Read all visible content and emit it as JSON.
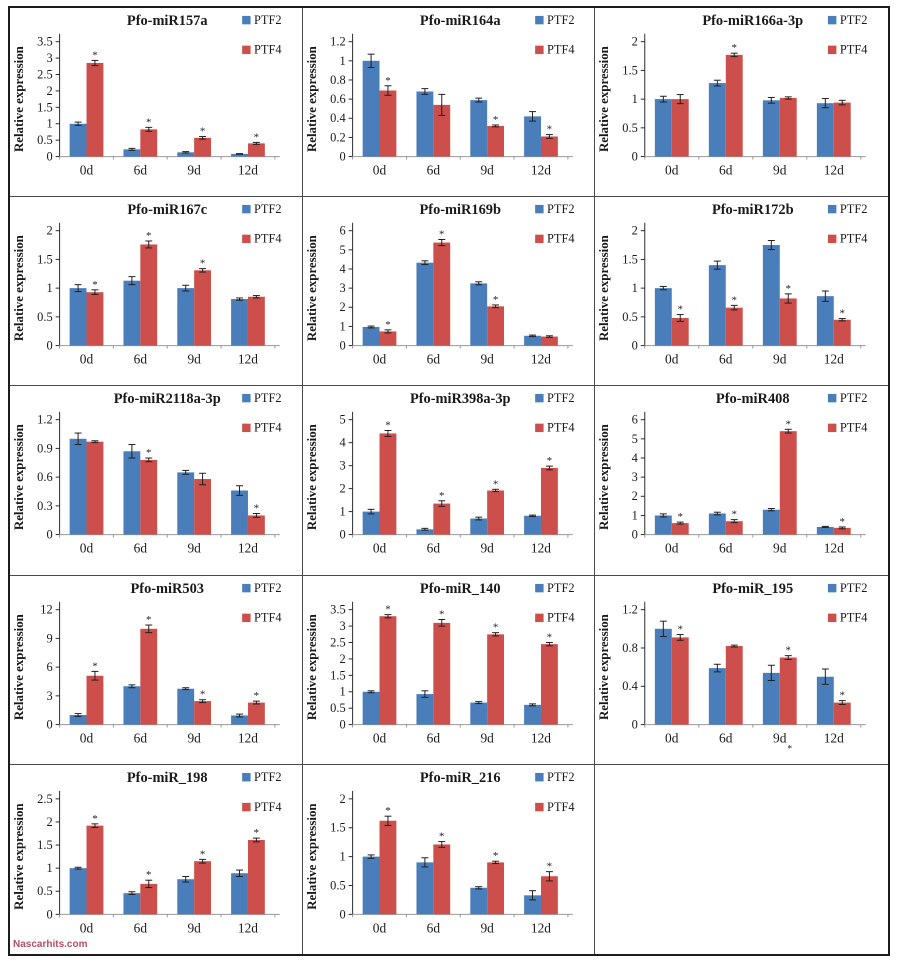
{
  "page": {
    "watermark": "Nascarhits.com"
  },
  "colors": {
    "ptf2": "#4a7ebb",
    "ptf4": "#cc4f4b",
    "axis": "#2b2b2b",
    "baseline": "#999999",
    "error": "#1f1f1f",
    "text": "#1a1a1a"
  },
  "legend": {
    "ptf2_label": "PTF2",
    "ptf4_label": "PTF4",
    "position": "top-right"
  },
  "ylabel": "Relative expression",
  "categories": [
    "0d",
    "6d",
    "9d",
    "12d"
  ],
  "chart_data": [
    {
      "type": "bar",
      "title": "Pfo-miR157a",
      "xlabel": "",
      "ylabel": "Relative expression",
      "ylim": [
        0,
        3.5
      ],
      "ytick_step": 0.5,
      "grid": false,
      "categories": [
        "0d",
        "6d",
        "9d",
        "12d"
      ],
      "series": [
        {
          "name": "PTF2",
          "values": [
            1.0,
            0.22,
            0.13,
            0.08
          ],
          "errors": [
            0.05,
            0.03,
            0.02,
            0.01
          ],
          "asterisks": [
            false,
            false,
            false,
            false
          ]
        },
        {
          "name": "PTF4",
          "values": [
            2.85,
            0.83,
            0.57,
            0.4
          ],
          "errors": [
            0.08,
            0.06,
            0.04,
            0.03
          ],
          "asterisks": [
            true,
            true,
            true,
            true
          ]
        }
      ]
    },
    {
      "type": "bar",
      "title": "Pfo-miR164a",
      "xlabel": "",
      "ylabel": "Relative expression",
      "ylim": [
        0,
        1.2
      ],
      "ytick_step": 0.2,
      "grid": false,
      "categories": [
        "0d",
        "6d",
        "9d",
        "12d"
      ],
      "series": [
        {
          "name": "PTF2",
          "values": [
            1.0,
            0.68,
            0.59,
            0.42
          ],
          "errors": [
            0.07,
            0.03,
            0.02,
            0.05
          ],
          "asterisks": [
            false,
            false,
            false,
            false
          ]
        },
        {
          "name": "PTF4",
          "values": [
            0.69,
            0.54,
            0.32,
            0.21
          ],
          "errors": [
            0.05,
            0.11,
            0.01,
            0.02
          ],
          "asterisks": [
            true,
            false,
            true,
            true
          ]
        }
      ]
    },
    {
      "type": "bar",
      "title": "Pfo-miR166a-3p",
      "xlabel": "",
      "ylabel": "Relative expression",
      "ylim": [
        0,
        2
      ],
      "ytick_step": 0.5,
      "grid": false,
      "categories": [
        "0d",
        "6d",
        "9d",
        "12d"
      ],
      "series": [
        {
          "name": "PTF2",
          "values": [
            1.0,
            1.28,
            0.98,
            0.93
          ],
          "errors": [
            0.05,
            0.05,
            0.05,
            0.08
          ],
          "asterisks": [
            false,
            false,
            false,
            false
          ]
        },
        {
          "name": "PTF4",
          "values": [
            1.0,
            1.77,
            1.02,
            0.94
          ],
          "errors": [
            0.08,
            0.03,
            0.02,
            0.04
          ],
          "asterisks": [
            false,
            true,
            false,
            false
          ]
        }
      ]
    },
    {
      "type": "bar",
      "title": "Pfo-miR167c",
      "xlabel": "",
      "ylabel": "Relative expression",
      "ylim": [
        0,
        2
      ],
      "ytick_step": 0.5,
      "grid": false,
      "categories": [
        "0d",
        "6d",
        "9d",
        "12d"
      ],
      "series": [
        {
          "name": "PTF2",
          "values": [
            1.0,
            1.13,
            1.0,
            0.81
          ],
          "errors": [
            0.06,
            0.07,
            0.05,
            0.02
          ],
          "asterisks": [
            false,
            false,
            false,
            false
          ]
        },
        {
          "name": "PTF4",
          "values": [
            0.93,
            1.76,
            1.31,
            0.85
          ],
          "errors": [
            0.04,
            0.06,
            0.03,
            0.02
          ],
          "asterisks": [
            true,
            true,
            true,
            false
          ]
        }
      ]
    },
    {
      "type": "bar",
      "title": "Pfo-miR169b",
      "xlabel": "",
      "ylabel": "Relative expression",
      "ylim": [
        0,
        6
      ],
      "ytick_step": 1,
      "grid": false,
      "categories": [
        "0d",
        "6d",
        "9d",
        "12d"
      ],
      "series": [
        {
          "name": "PTF2",
          "values": [
            0.97,
            4.33,
            3.25,
            0.51
          ],
          "errors": [
            0.05,
            0.1,
            0.08,
            0.04
          ],
          "asterisks": [
            false,
            false,
            false,
            false
          ]
        },
        {
          "name": "PTF4",
          "values": [
            0.74,
            5.38,
            2.05,
            0.47
          ],
          "errors": [
            0.08,
            0.16,
            0.07,
            0.04
          ],
          "asterisks": [
            true,
            true,
            true,
            false
          ]
        }
      ]
    },
    {
      "type": "bar",
      "title": "Pfo-miR172b",
      "xlabel": "",
      "ylabel": "Relative expression",
      "ylim": [
        0,
        2
      ],
      "ytick_step": 0.5,
      "grid": false,
      "categories": [
        "0d",
        "6d",
        "9d",
        "12d"
      ],
      "series": [
        {
          "name": "PTF2",
          "values": [
            1.0,
            1.4,
            1.75,
            0.86
          ],
          "errors": [
            0.03,
            0.07,
            0.08,
            0.09
          ],
          "asterisks": [
            false,
            false,
            false,
            false
          ]
        },
        {
          "name": "PTF4",
          "values": [
            0.48,
            0.66,
            0.82,
            0.45
          ],
          "errors": [
            0.06,
            0.04,
            0.08,
            0.02
          ],
          "asterisks": [
            true,
            true,
            true,
            true
          ]
        }
      ]
    },
    {
      "type": "bar",
      "title": "Pfo-miR2118a-3p",
      "xlabel": "",
      "ylabel": "Relative expression",
      "ylim": [
        0,
        1.2
      ],
      "ytick_step": 0.3,
      "grid": false,
      "categories": [
        "0d",
        "6d",
        "9d",
        "12d"
      ],
      "series": [
        {
          "name": "PTF2",
          "values": [
            1.0,
            0.87,
            0.65,
            0.46
          ],
          "errors": [
            0.06,
            0.07,
            0.02,
            0.05
          ],
          "asterisks": [
            false,
            false,
            false,
            false
          ]
        },
        {
          "name": "PTF4",
          "values": [
            0.97,
            0.78,
            0.58,
            0.2
          ],
          "errors": [
            0.01,
            0.02,
            0.06,
            0.02
          ],
          "asterisks": [
            false,
            true,
            false,
            true
          ]
        }
      ]
    },
    {
      "type": "bar",
      "title": "Pfo-miR398a-3p",
      "xlabel": "",
      "ylabel": "Relative expression",
      "ylim": [
        0,
        5
      ],
      "ytick_step": 1,
      "grid": false,
      "categories": [
        "0d",
        "6d",
        "9d",
        "12d"
      ],
      "series": [
        {
          "name": "PTF2",
          "values": [
            1.0,
            0.23,
            0.7,
            0.82
          ],
          "errors": [
            0.1,
            0.04,
            0.06,
            0.03
          ],
          "asterisks": [
            false,
            false,
            false,
            false
          ]
        },
        {
          "name": "PTF4",
          "values": [
            4.4,
            1.35,
            1.92,
            2.9
          ],
          "errors": [
            0.13,
            0.12,
            0.05,
            0.08
          ],
          "asterisks": [
            true,
            true,
            true,
            true
          ]
        }
      ]
    },
    {
      "type": "bar",
      "title": "Pfo-miR408",
      "xlabel": "",
      "ylabel": "Relative expression",
      "ylim": [
        0,
        6
      ],
      "ytick_step": 1,
      "grid": false,
      "categories": [
        "0d",
        "6d",
        "9d",
        "12d"
      ],
      "series": [
        {
          "name": "PTF2",
          "values": [
            1.0,
            1.1,
            1.3,
            0.4
          ],
          "errors": [
            0.08,
            0.07,
            0.06,
            0.03
          ],
          "asterisks": [
            false,
            false,
            false,
            false
          ]
        },
        {
          "name": "PTF4",
          "values": [
            0.6,
            0.7,
            5.4,
            0.35
          ],
          "errors": [
            0.05,
            0.08,
            0.1,
            0.05
          ],
          "asterisks": [
            true,
            true,
            true,
            true
          ]
        }
      ]
    },
    {
      "type": "bar",
      "title": "Pfo-miR503",
      "xlabel": "",
      "ylabel": "Relative expression",
      "ylim": [
        0,
        12
      ],
      "ytick_step": 3,
      "grid": false,
      "categories": [
        "0d",
        "6d",
        "9d",
        "12d"
      ],
      "series": [
        {
          "name": "PTF2",
          "values": [
            1.0,
            4.0,
            3.75,
            0.95
          ],
          "errors": [
            0.15,
            0.15,
            0.1,
            0.15
          ],
          "asterisks": [
            false,
            false,
            false,
            false
          ]
        },
        {
          "name": "PTF4",
          "values": [
            5.1,
            10.0,
            2.45,
            2.3
          ],
          "errors": [
            0.45,
            0.4,
            0.15,
            0.15
          ],
          "asterisks": [
            true,
            true,
            true,
            true
          ]
        }
      ]
    },
    {
      "type": "bar",
      "title": "Pfo-miR_140",
      "xlabel": "",
      "ylabel": "Relative expression",
      "ylim": [
        0,
        3.5
      ],
      "ytick_step": 0.5,
      "grid": false,
      "categories": [
        "0d",
        "6d",
        "9d",
        "12d"
      ],
      "series": [
        {
          "name": "PTF2",
          "values": [
            1.0,
            0.93,
            0.67,
            0.6
          ],
          "errors": [
            0.03,
            0.1,
            0.03,
            0.03
          ],
          "asterisks": [
            false,
            false,
            false,
            false
          ]
        },
        {
          "name": "PTF4",
          "values": [
            3.3,
            3.1,
            2.75,
            2.45
          ],
          "errors": [
            0.05,
            0.1,
            0.05,
            0.05
          ],
          "asterisks": [
            true,
            true,
            true,
            true
          ]
        }
      ]
    },
    {
      "type": "bar",
      "title": "Pfo-miR_195",
      "xlabel": "",
      "ylabel": "Relative expression",
      "ylim": [
        0,
        1.2
      ],
      "ytick_step": 0.4,
      "grid": false,
      "categories": [
        "0d",
        "6d",
        "9d",
        "12d"
      ],
      "x_asterisks": [
        false,
        false,
        true,
        false
      ],
      "series": [
        {
          "name": "PTF2",
          "values": [
            1.0,
            0.59,
            0.54,
            0.5
          ],
          "errors": [
            0.08,
            0.04,
            0.08,
            0.08
          ],
          "asterisks": [
            false,
            false,
            false,
            false
          ]
        },
        {
          "name": "PTF4",
          "values": [
            0.91,
            0.82,
            0.7,
            0.23
          ],
          "errors": [
            0.03,
            0.01,
            0.02,
            0.02
          ],
          "asterisks": [
            true,
            false,
            true,
            true
          ]
        }
      ]
    },
    {
      "type": "bar",
      "title": "Pfo-miR_198",
      "xlabel": "",
      "ylabel": "Relative expression",
      "ylim": [
        0,
        2.5
      ],
      "ytick_step": 0.5,
      "grid": false,
      "categories": [
        "0d",
        "6d",
        "9d",
        "12d"
      ],
      "series": [
        {
          "name": "PTF2",
          "values": [
            1.0,
            0.46,
            0.76,
            0.89
          ],
          "errors": [
            0.02,
            0.03,
            0.06,
            0.07
          ],
          "asterisks": [
            false,
            false,
            false,
            false
          ]
        },
        {
          "name": "PTF4",
          "values": [
            1.92,
            0.66,
            1.15,
            1.61
          ],
          "errors": [
            0.04,
            0.08,
            0.04,
            0.04
          ],
          "asterisks": [
            true,
            true,
            true,
            true
          ]
        }
      ]
    },
    {
      "type": "bar",
      "title": "Pfo-miR_216",
      "xlabel": "",
      "ylabel": "Relative expression",
      "ylim": [
        0,
        2
      ],
      "ytick_step": 0.5,
      "grid": false,
      "categories": [
        "0d",
        "6d",
        "9d",
        "12d"
      ],
      "series": [
        {
          "name": "PTF2",
          "values": [
            1.0,
            0.9,
            0.46,
            0.33
          ],
          "errors": [
            0.03,
            0.08,
            0.02,
            0.08
          ],
          "asterisks": [
            false,
            false,
            false,
            false
          ]
        },
        {
          "name": "PTF4",
          "values": [
            1.62,
            1.21,
            0.9,
            0.66
          ],
          "errors": [
            0.08,
            0.05,
            0.02,
            0.08
          ],
          "asterisks": [
            true,
            true,
            true,
            true
          ]
        }
      ]
    },
    null
  ]
}
